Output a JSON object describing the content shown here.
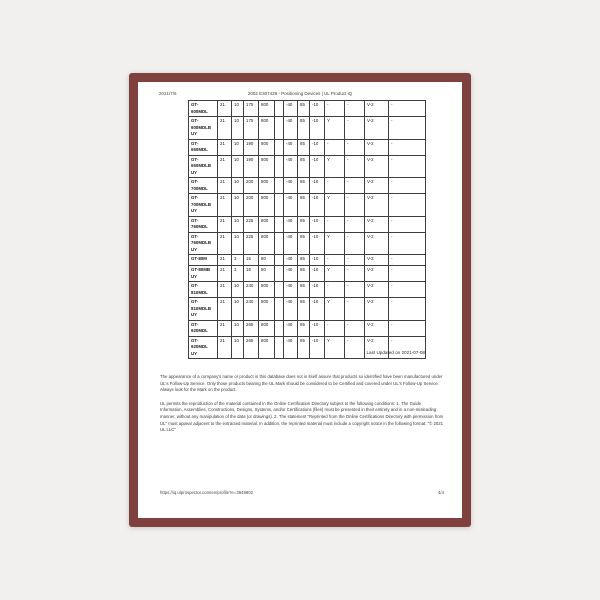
{
  "page": {
    "border_color": "#7e413d",
    "background_color": "#f1f0ee"
  },
  "header": {
    "date": "2021/7/6",
    "title": "2002 E307428 - Positioning Devices | UL Product iQ"
  },
  "table": {
    "rows": [
      {
        "model": "GT-600MDL",
        "cells": [
          "21",
          "10",
          "175",
          "800",
          "",
          "-40",
          "85",
          "-10",
          "-",
          "-",
          "V-2",
          "-"
        ]
      },
      {
        "model": "GT-\n600MDLB\nUY",
        "cells": [
          "21",
          "10",
          "175",
          "800",
          "",
          "-40",
          "85",
          "-10",
          "Y",
          "-",
          "V-2",
          "-"
        ]
      },
      {
        "model": "GT-650MDL",
        "cells": [
          "21",
          "10",
          "190",
          "800",
          "",
          "-40",
          "85",
          "-10",
          "-",
          "-",
          "V-2",
          "-"
        ]
      },
      {
        "model": "GT-\n650MDLB\nUY",
        "cells": [
          "21",
          "10",
          "190",
          "800",
          "",
          "-40",
          "85",
          "-10",
          "Y",
          "-",
          "V-2",
          "-"
        ]
      },
      {
        "model": "GT-700MDL",
        "cells": [
          "21",
          "10",
          "200",
          "800",
          "",
          "-40",
          "85",
          "-10",
          "-",
          "-",
          "V-2",
          "-"
        ]
      },
      {
        "model": "GT-\n700MDLB\nUY",
        "cells": [
          "21",
          "10",
          "200",
          "800",
          "",
          "-40",
          "85",
          "-10",
          "Y",
          "-",
          "V-2",
          "-"
        ]
      },
      {
        "model": "GT-760MDL",
        "cells": [
          "21",
          "10",
          "225",
          "800",
          "",
          "-40",
          "85",
          "-10",
          "-",
          "-",
          "V-2",
          "-"
        ]
      },
      {
        "model": "GT-\n760MDLB\nUY",
        "cells": [
          "21",
          "10",
          "225",
          "800",
          "",
          "-40",
          "85",
          "-10",
          "Y",
          "-",
          "V-2",
          "-"
        ]
      },
      {
        "model": "GT-80M",
        "cells": [
          "21",
          "3",
          "16",
          "80",
          "",
          "-40",
          "85",
          "-10",
          "-",
          "-",
          "V-2",
          "-"
        ]
      },
      {
        "model": "GT-80MB\nUY",
        "cells": [
          "21",
          "3",
          "16",
          "80",
          "",
          "-40",
          "85",
          "-10",
          "Y",
          "-",
          "V-2",
          "-"
        ]
      },
      {
        "model": "GT-810MDL",
        "cells": [
          "21",
          "10",
          "240",
          "800",
          "",
          "-40",
          "85",
          "-10",
          "-",
          "-",
          "V-2",
          "-"
        ]
      },
      {
        "model": "GT-\n810MDLB\nUY",
        "cells": [
          "21",
          "10",
          "240",
          "800",
          "",
          "-40",
          "85",
          "-10",
          "Y",
          "-",
          "V-2",
          "-"
        ]
      },
      {
        "model": "GT-920MDL",
        "cells": [
          "21",
          "10",
          "265",
          "800",
          "",
          "-40",
          "85",
          "-10",
          "-",
          "-",
          "V-2",
          "-"
        ]
      },
      {
        "model": "GT-920MDL\nUY",
        "cells": [
          "21",
          "10",
          "265",
          "800",
          "",
          "-40",
          "85",
          "-10",
          "Y",
          "-",
          "V-2",
          "-"
        ]
      }
    ]
  },
  "last_updated": "Last Updated on 2021-07-08",
  "notices": {
    "paragraph1": "The appearance of a company's name or product in this database does not in itself assure that products so identified have been manufactured under UL's Follow-Up Service. Only those products bearing the UL Mark should be considered to be Certified and covered under UL's Follow-Up Service. Always look for the Mark on the product.",
    "paragraph2": "UL permits the reproduction of the material contained in the Online Certification Directory subject to the following conditions: 1. The Guide Information, Assemblies, Constructions, Designs, Systems, and/or Certifications (files) must be presented in their entirety and in a non-misleading manner, without any manipulation of the data (or drawings). 2. The statement \"Reprinted from the Online Certifications Directory with permission from UL\" must appear adjacent to the extracted material. In addition, the reprinted material must include a copyright notice in the following format: \"© 2021 UL LLC\""
  },
  "footer": {
    "url": "https://iq.ulprospector.com/en/profile?e=3949802",
    "page_number": "4/4"
  }
}
